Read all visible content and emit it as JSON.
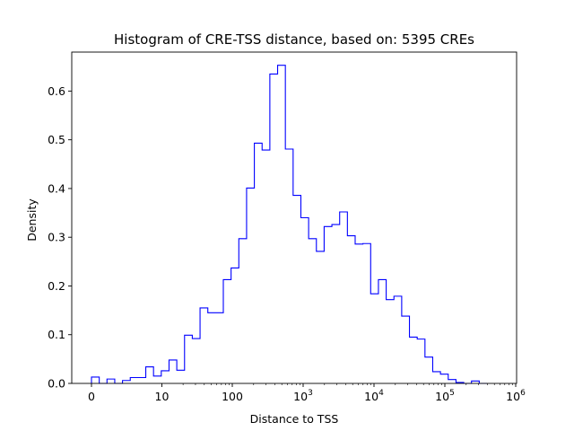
{
  "chart_data": {
    "type": "histogram",
    "title": "Histogram of CRE-TSS distance, based on: 5395 CREs",
    "xlabel": "Distance to TSS",
    "ylabel": "Density",
    "ylim": [
      0,
      0.68
    ],
    "yticks": [
      "0.0",
      "0.1",
      "0.2",
      "0.3",
      "0.4",
      "0.5",
      "0.6"
    ],
    "xticks": [
      {
        "base": "0",
        "exp": ""
      },
      {
        "base": "10",
        "exp": ""
      },
      {
        "base": "100",
        "exp": ""
      },
      {
        "base": "10",
        "exp": "3"
      },
      {
        "base": "10",
        "exp": "4"
      },
      {
        "base": "10",
        "exp": "5"
      },
      {
        "base": "10",
        "exp": "6"
      }
    ],
    "line_color": "#0000ff",
    "densities": [
      0.013,
      0.0,
      0.009,
      0.0,
      0.006,
      0.012,
      0.012,
      0.034,
      0.015,
      0.026,
      0.048,
      0.027,
      0.099,
      0.092,
      0.155,
      0.145,
      0.145,
      0.213,
      0.237,
      0.297,
      0.401,
      0.493,
      0.479,
      0.635,
      0.653,
      0.481,
      0.386,
      0.34,
      0.297,
      0.271,
      0.322,
      0.326,
      0.352,
      0.303,
      0.286,
      0.287,
      0.184,
      0.213,
      0.172,
      0.179,
      0.138,
      0.095,
      0.091,
      0.054,
      0.024,
      0.019,
      0.008,
      0.002,
      0.0,
      0.005,
      0.0
    ]
  }
}
